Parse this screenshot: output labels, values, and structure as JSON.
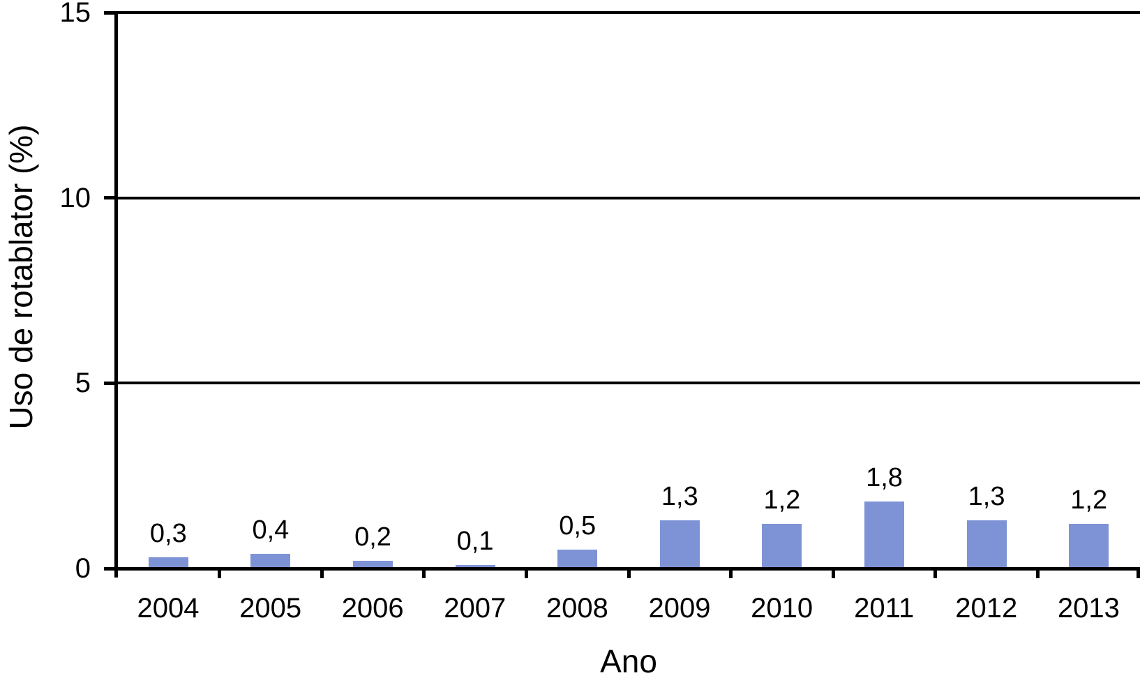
{
  "chart_data": {
    "type": "bar",
    "title": "",
    "xlabel": "Ano",
    "ylabel": "Uso de rotablator (%)",
    "categories": [
      "2004",
      "2005",
      "2006",
      "2007",
      "2008",
      "2009",
      "2010",
      "2011",
      "2012",
      "2013"
    ],
    "values": [
      0.3,
      0.4,
      0.2,
      0.1,
      0.5,
      1.3,
      1.2,
      1.8,
      1.3,
      1.2
    ],
    "value_labels": [
      "0,3",
      "0,4",
      "0,2",
      "0,1",
      "0,5",
      "1,3",
      "1,2",
      "1,8",
      "1,3",
      "1,2"
    ],
    "ylim": [
      0,
      15
    ],
    "yticks": [
      0,
      5,
      10,
      15
    ],
    "ytick_labels": [
      "0",
      "5",
      "10",
      "15"
    ],
    "gridlines": "horizontal at 5, 10, 15",
    "legend": "none",
    "decimal_separator": ",",
    "colors": {
      "bar_fill": "#7E93D6",
      "axis": "#000000",
      "text": "#000000",
      "background": "#FFFFFF"
    }
  }
}
